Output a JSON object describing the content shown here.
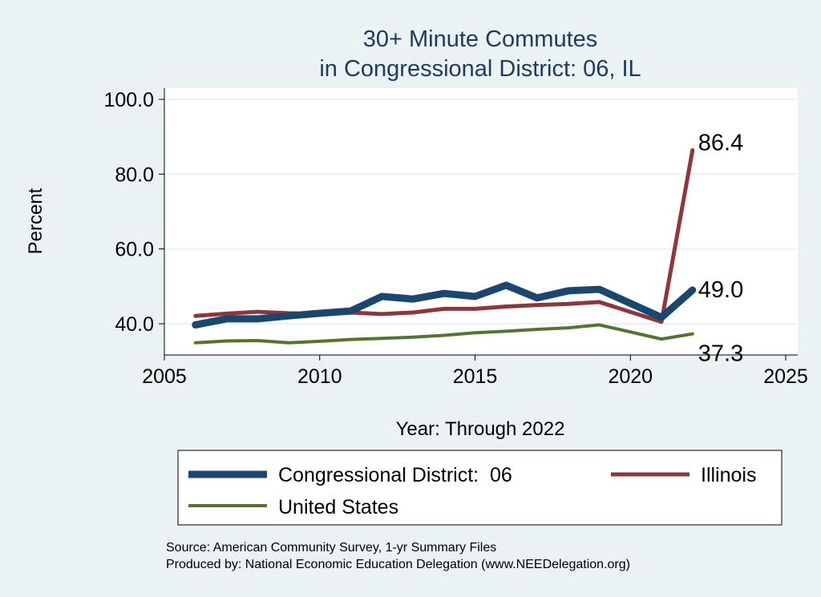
{
  "chart_data": {
    "type": "line",
    "title": [
      "30+ Minute Commutes",
      "in Congressional District:  06, IL"
    ],
    "xlabel": "Year: Through 2022",
    "ylabel": "Percent",
    "xlim": [
      2005,
      2025
    ],
    "ylim": [
      32,
      102
    ],
    "xticks": [
      2005,
      2010,
      2015,
      2020,
      2025
    ],
    "yticks": [
      40,
      60,
      80,
      100
    ],
    "ytick_labels": [
      "40.0",
      "60.0",
      "80.0",
      "100.0"
    ],
    "grid": true,
    "x": [
      2006,
      2007,
      2008,
      2009,
      2010,
      2011,
      2012,
      2013,
      2014,
      2015,
      2016,
      2017,
      2018,
      2019,
      2021,
      2022
    ],
    "series": [
      {
        "name": "Congressional District:  06",
        "color": "#1a476f",
        "width": 9,
        "values": [
          39.7,
          41.3,
          41.3,
          42.1,
          42.8,
          43.4,
          47.3,
          46.6,
          48.1,
          47.3,
          50.3,
          46.9,
          48.8,
          49.2,
          41.7,
          49.0
        ],
        "end_label": "49.0"
      },
      {
        "name": "Illinois",
        "color": "#90353b",
        "width": 5,
        "values": [
          42.1,
          42.7,
          43.2,
          42.8,
          42.7,
          43.0,
          42.6,
          43.0,
          44.0,
          44.0,
          44.6,
          45.0,
          45.3,
          45.8,
          40.5,
          86.4
        ],
        "end_label": "86.4"
      },
      {
        "name": "United States",
        "color": "#55752f",
        "width": 4,
        "values": [
          34.9,
          35.4,
          35.5,
          34.9,
          35.3,
          35.8,
          36.1,
          36.4,
          36.9,
          37.6,
          38.0,
          38.5,
          38.9,
          39.7,
          35.9,
          37.3
        ],
        "end_label": "37.3"
      }
    ],
    "legend_position": "bottom"
  },
  "notes": [
    "Source: American Community Survey, 1-yr Summary Files",
    "Produced by: National Economic Education Delegation (www.NEEDelegation.org)"
  ]
}
